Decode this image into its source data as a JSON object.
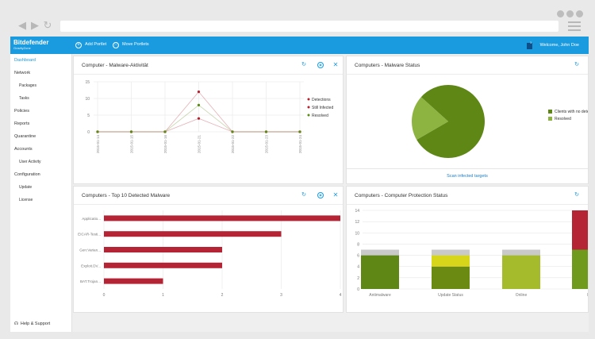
{
  "browser": {
    "nav_back": "◀",
    "nav_forward": "▶",
    "nav_refresh": "↻",
    "dots_icon": "window-dots-icon",
    "menu_icon": "hamburger-menu-icon"
  },
  "appbar": {
    "brand_name": "Bitdefender",
    "brand_sub": "GravityZone",
    "add_portlet": "Add Portlet",
    "move_portlets": "Move Portlets",
    "notification_count": "1",
    "welcome": "Welcome, John Doe",
    "color": "#1a9be0"
  },
  "sidebar": {
    "items": [
      {
        "label": "Dashboard",
        "active": true
      },
      {
        "label": "Network"
      },
      {
        "label": "Packages",
        "sub": true
      },
      {
        "label": "Tasks",
        "sub": true
      },
      {
        "label": "Policies"
      },
      {
        "label": "Reports"
      },
      {
        "label": "Quarantine"
      },
      {
        "label": "Accounts"
      },
      {
        "label": "User Activity",
        "sub": true
      },
      {
        "label": "Configuration"
      },
      {
        "label": "Update",
        "sub": true
      },
      {
        "label": "License",
        "sub": true
      }
    ],
    "help": "Help & Support"
  },
  "portlets": {
    "malware_activity": {
      "title": "Computer - Malware-Aktivität",
      "close": "✕",
      "refresh": "↻"
    },
    "malware_status": {
      "title": "Computers - Malware Status",
      "refresh": "↻",
      "scan_link": "Scan infected targets"
    },
    "top10": {
      "title": "Computers - Top 10 Detected Malware",
      "close": "✕",
      "refresh": "↻"
    },
    "protection": {
      "title": "Computers - Computer Protection Status",
      "refresh": "↻"
    }
  },
  "chart_data": [
    {
      "type": "line",
      "x": [
        "2015-01-14",
        "2015-01-15",
        "2015-01-16",
        "2015-01-21",
        "2015-01-22",
        "2015-01-23",
        "2015-01-24"
      ],
      "series": [
        {
          "name": "Detections",
          "color": "#b5202e",
          "values": [
            0,
            0,
            0,
            12,
            0,
            0,
            0
          ]
        },
        {
          "name": "Still Infected",
          "color": "#b5202e",
          "values": [
            0,
            0,
            0,
            4,
            0,
            0,
            0
          ]
        },
        {
          "name": "Resolved",
          "color": "#5b8a16",
          "values": [
            0,
            0,
            0,
            8,
            0,
            0,
            0
          ]
        }
      ],
      "ylim": [
        0,
        15
      ],
      "yticks": [
        0,
        5,
        10,
        15
      ],
      "legend": "right",
      "grid": true
    },
    {
      "type": "pie",
      "slices": [
        {
          "name": "Clients with no detections",
          "label_visible": "Clients with no dete",
          "value": 80,
          "color": "#5f8716"
        },
        {
          "name": "Resolved",
          "value": 20,
          "color": "#8db340"
        }
      ],
      "legend": "right"
    },
    {
      "type": "bar",
      "orientation": "horizontal",
      "categories": [
        "Applicatio...",
        "EICAR-Testi...",
        "Gen:Varian...",
        "Exploit.DV...",
        "BAT.Trojan..."
      ],
      "values": [
        4,
        3,
        2,
        2,
        1
      ],
      "xlim": [
        0,
        4
      ],
      "xticks": [
        0,
        1,
        2,
        3,
        4
      ],
      "color": "#b52435",
      "grid": true
    },
    {
      "type": "bar",
      "stacked": true,
      "categories": [
        "Antimalware",
        "Update Status",
        "Online",
        "Man"
      ],
      "series": [
        {
          "name": "Protected",
          "colors": [
            "#5f8716",
            "#6b8a12",
            "#a6bb2b",
            "#6f9a1c"
          ],
          "values": [
            6,
            4,
            6,
            7
          ]
        },
        {
          "name": "Warning",
          "colors": [
            "#c9c9c9",
            "#d7d61a",
            "#c9c9c9",
            "#b52435"
          ],
          "values": [
            1,
            2,
            1,
            7
          ]
        },
        {
          "name": "Unknown",
          "colors": [
            "#c9c9c9",
            "#c9c9c9",
            "#8e8e8e",
            "#b52435"
          ],
          "values": [
            0,
            1,
            0,
            0
          ]
        }
      ],
      "ylim": [
        0,
        14
      ],
      "yticks": [
        0,
        2,
        4,
        6,
        8,
        10,
        12,
        14
      ],
      "grid": true
    }
  ]
}
